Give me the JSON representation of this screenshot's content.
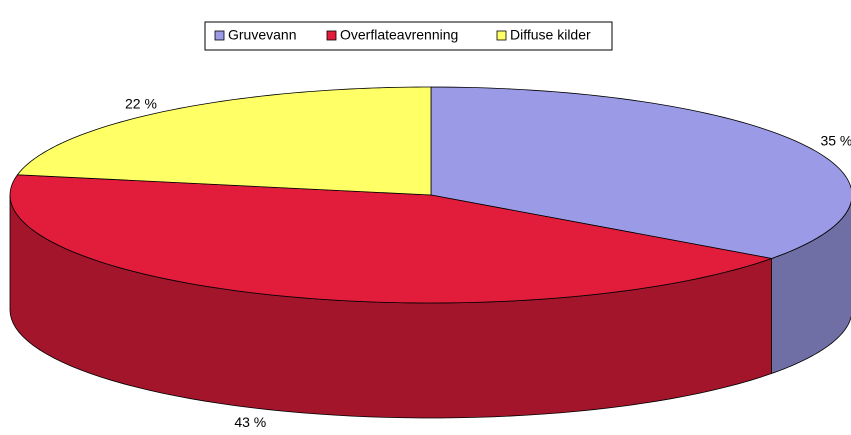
{
  "chart_data": {
    "type": "pie3d",
    "categories": [
      "Gruvevann",
      "Overflateavrenning",
      "Diffuse kilder"
    ],
    "values": [
      35,
      43,
      22
    ],
    "value_labels": [
      "35 %",
      "43 %",
      "22 %"
    ],
    "colors": [
      "#9a9ae6",
      "#e21d3c",
      "#ffff66"
    ],
    "legend": "top"
  }
}
